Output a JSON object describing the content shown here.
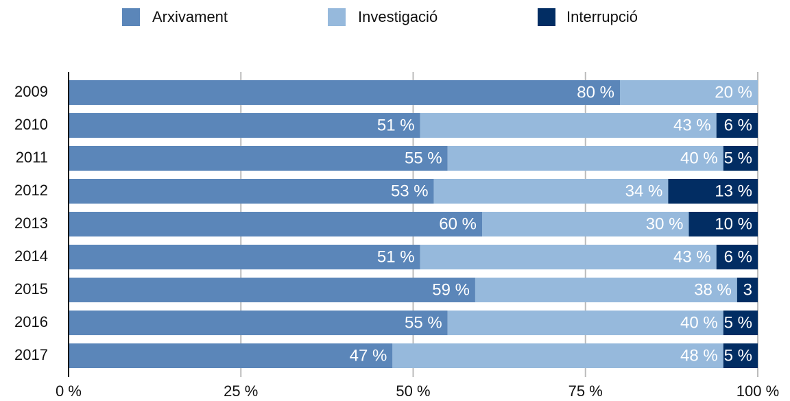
{
  "chart_data": {
    "type": "stacked_barh",
    "categories": [
      "2009",
      "2010",
      "2011",
      "2012",
      "2013",
      "2014",
      "2015",
      "2016",
      "2017"
    ],
    "series": [
      {
        "name": "Arxivament",
        "color": "#5b86b9",
        "values": [
          80,
          51,
          55,
          53,
          60,
          51,
          59,
          55,
          47
        ],
        "value_labels": [
          "80 %",
          "51 %",
          "55 %",
          "53 %",
          "60 %",
          "51 %",
          "59 %",
          "55 %",
          "47 %"
        ]
      },
      {
        "name": "Investigació",
        "color": "#96b9dc",
        "values": [
          20,
          43,
          40,
          34,
          30,
          43,
          38,
          40,
          48
        ],
        "value_labels": [
          "20 %",
          "43 %",
          "40 %",
          "34 %",
          "30 %",
          "43 %",
          "38 %",
          "40 %",
          "48 %"
        ]
      },
      {
        "name": "Interrupció",
        "color": "#022d63",
        "values": [
          null,
          6,
          5,
          13,
          10,
          6,
          3,
          5,
          5
        ],
        "value_labels": [
          null,
          "6 %",
          "5 %",
          "13 %",
          "10 %",
          "6 %",
          "3",
          "5 %",
          "5 %"
        ]
      }
    ],
    "xlim": [
      0,
      100
    ],
    "xticks": [
      {
        "value": 0,
        "label": "0 %"
      },
      {
        "value": 25,
        "label": "25 %"
      },
      {
        "value": 50,
        "label": "50 %"
      },
      {
        "value": 75,
        "label": "75 %"
      },
      {
        "value": 100,
        "label": "100 %"
      }
    ],
    "grid": true
  }
}
